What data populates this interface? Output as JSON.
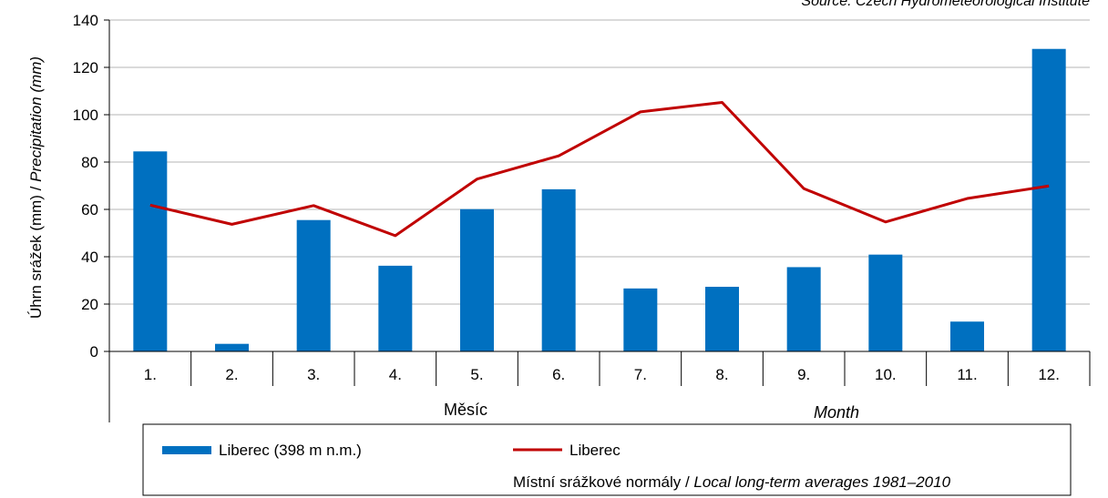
{
  "source_note": "Source: Czech Hydrometeorological Institute",
  "chart_data": {
    "type": "bar",
    "categories": [
      "1.",
      "2.",
      "3.",
      "4.",
      "5.",
      "6.",
      "7.",
      "8.",
      "9.",
      "10.",
      "11.",
      "12."
    ],
    "series": [
      {
        "name": "Liberec (398 m n.m.)",
        "type": "bar",
        "color": "#0070C0",
        "values": [
          84.5,
          3.2,
          55.5,
          36.2,
          60.1,
          68.5,
          26.6,
          27.3,
          35.6,
          40.9,
          12.6,
          127.8
        ]
      },
      {
        "name": "Liberec",
        "type": "line",
        "color": "#C00000",
        "values": [
          61.8,
          53.7,
          61.6,
          48.9,
          72.8,
          82.6,
          101.2,
          105.2,
          68.8,
          54.7,
          64.6,
          69.9
        ]
      }
    ],
    "ylabel_czech": "Úhrn srážek (mm) / ",
    "ylabel_english": "Precipitation (mm)",
    "xlabel_czech": "Měsíc",
    "xlabel_english": "Month",
    "ylim": [
      0,
      140
    ],
    "yticks": [
      0,
      20,
      40,
      60,
      80,
      100,
      120,
      140
    ],
    "grid": true,
    "legend_position": "bottom",
    "legend_note_czech": "Místní srážkové normály / ",
    "legend_note_english": "Local long-term averages 1981–2010"
  }
}
